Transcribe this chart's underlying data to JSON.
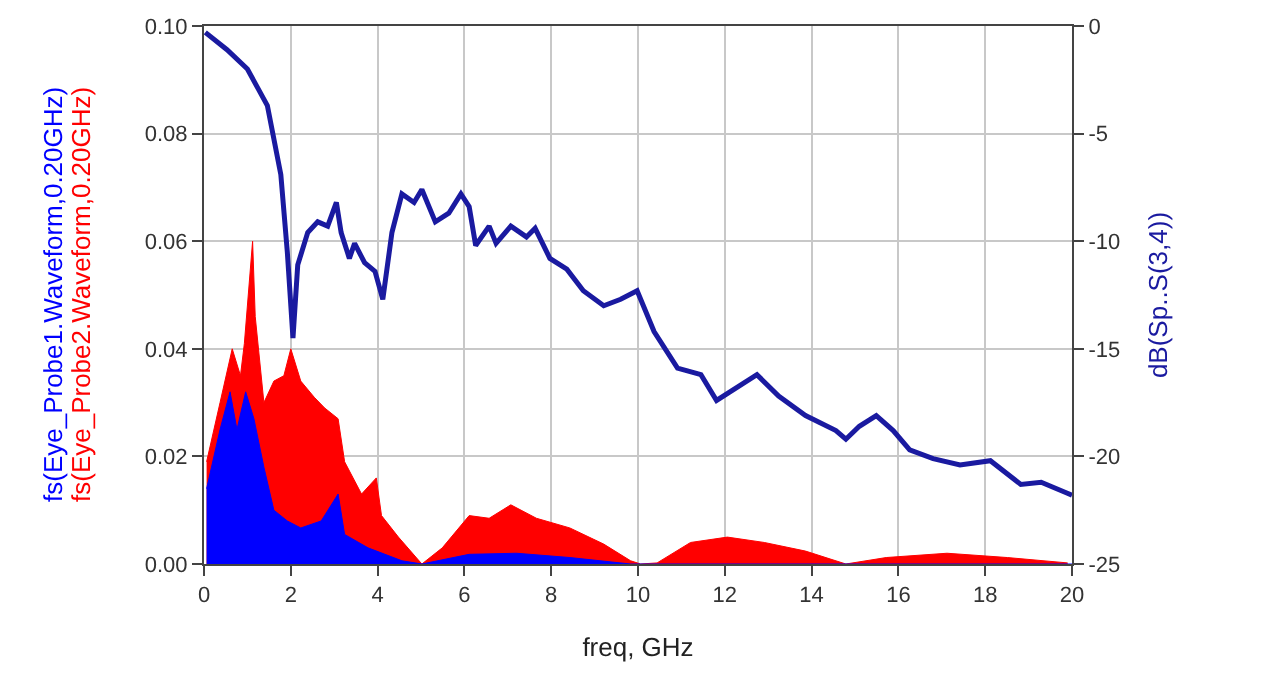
{
  "chart_data": {
    "type": "area",
    "xlabel": "freq, GHz",
    "y2label": "dB(Sp..S(3,4))",
    "xlim": [
      0,
      20
    ],
    "xticks": [
      0,
      2,
      4,
      6,
      8,
      10,
      12,
      14,
      16,
      18,
      20
    ],
    "ylim": [
      0,
      0.1
    ],
    "yticks": [
      {
        "value": 0,
        "label": "0.00"
      },
      {
        "value": 0.02,
        "label": "0.02"
      },
      {
        "value": 0.04,
        "label": "0.04"
      },
      {
        "value": 0.06,
        "label": "0.06"
      },
      {
        "value": 0.08,
        "label": "0.08"
      },
      {
        "value": 0.1,
        "label": "0.10"
      }
    ],
    "y2lim": [
      -25,
      0
    ],
    "y2ticks": [
      -25,
      -20,
      -15,
      -10,
      -5,
      0
    ],
    "grid": true,
    "series": [
      {
        "name": "fs(Eye_Probe2.Waveform,0.20GHz)",
        "color": "#ff0000",
        "x": [
          0.06,
          0.37,
          0.65,
          0.84,
          0.93,
          1.12,
          1.18,
          1.38,
          1.61,
          1.84,
          2.0,
          2.23,
          2.54,
          2.78,
          3.09,
          3.24,
          3.63,
          3.97,
          4.09,
          4.48,
          5.02,
          5.49,
          6.11,
          6.57,
          7.07,
          7.66,
          8.43,
          9.21,
          9.83,
          10.06,
          10.44,
          11.21,
          12.06,
          12.91,
          13.86,
          14.79,
          15.72,
          17.12,
          18.51,
          19.9
        ],
        "values": [
          0.019,
          0.03,
          0.04,
          0.035,
          0.041,
          0.06,
          0.046,
          0.03,
          0.034,
          0.035,
          0.04,
          0.034,
          0.031,
          0.029,
          0.027,
          0.019,
          0.013,
          0.016,
          0.009,
          0.005,
          0.0,
          0.003,
          0.009,
          0.0085,
          0.011,
          0.0085,
          0.0067,
          0.0037,
          0.0006,
          0.0,
          0.0002,
          0.004,
          0.005,
          0.004,
          0.0024,
          0.0,
          0.0012,
          0.002,
          0.0012,
          0.0002
        ]
      },
      {
        "name": "fs(Eye_Probe1.Waveform,0.20GHz)",
        "color": "#0000ff",
        "x": [
          0.06,
          0.37,
          0.6,
          0.76,
          0.96,
          1.15,
          1.38,
          1.61,
          1.92,
          2.23,
          2.7,
          3.09,
          3.24,
          3.78,
          4.56,
          5.02,
          6.11,
          7.2,
          8.43,
          9.83,
          20.0
        ],
        "values": [
          0.014,
          0.025,
          0.032,
          0.025,
          0.032,
          0.027,
          0.018,
          0.01,
          0.008,
          0.0067,
          0.008,
          0.013,
          0.0055,
          0.003,
          0.0006,
          0.0,
          0.0018,
          0.002,
          0.0012,
          0.0,
          0.0
        ]
      },
      {
        "type": "line",
        "axis": "y2",
        "color": "#1a1aa0",
        "x": [
          0.03,
          0.53,
          1.0,
          1.46,
          1.77,
          1.92,
          2.05,
          2.16,
          2.39,
          2.62,
          2.85,
          3.05,
          3.16,
          3.35,
          3.47,
          3.7,
          3.94,
          4.12,
          4.33,
          4.56,
          4.84,
          5.02,
          5.33,
          5.64,
          5.92,
          6.11,
          6.26,
          6.57,
          6.73,
          7.07,
          7.43,
          7.63,
          7.97,
          8.36,
          8.74,
          9.21,
          9.6,
          9.98,
          10.37,
          10.91,
          11.45,
          11.81,
          12.74,
          13.24,
          13.86,
          14.56,
          14.79,
          15.1,
          15.49,
          15.88,
          16.26,
          16.8,
          17.42,
          18.12,
          18.82,
          19.29,
          19.88,
          20.0
        ],
        "values": [
          -0.3,
          -1.1,
          -2.0,
          -3.7,
          -6.9,
          -10.5,
          -14.5,
          -11.1,
          -9.6,
          -9.1,
          -9.3,
          -8.2,
          -9.6,
          -10.8,
          -10.1,
          -11.0,
          -11.4,
          -12.7,
          -9.6,
          -7.8,
          -8.2,
          -7.6,
          -9.1,
          -8.7,
          -7.8,
          -8.4,
          -10.2,
          -9.3,
          -10.1,
          -9.3,
          -9.8,
          -9.4,
          -10.8,
          -11.3,
          -12.3,
          -13.0,
          -12.7,
          -12.3,
          -14.2,
          -15.9,
          -16.2,
          -17.4,
          -16.2,
          -17.2,
          -18.1,
          -18.8,
          -19.2,
          -18.6,
          -18.1,
          -18.8,
          -19.7,
          -20.1,
          -20.4,
          -20.2,
          -21.3,
          -21.2,
          -21.7,
          -21.8
        ]
      }
    ]
  }
}
